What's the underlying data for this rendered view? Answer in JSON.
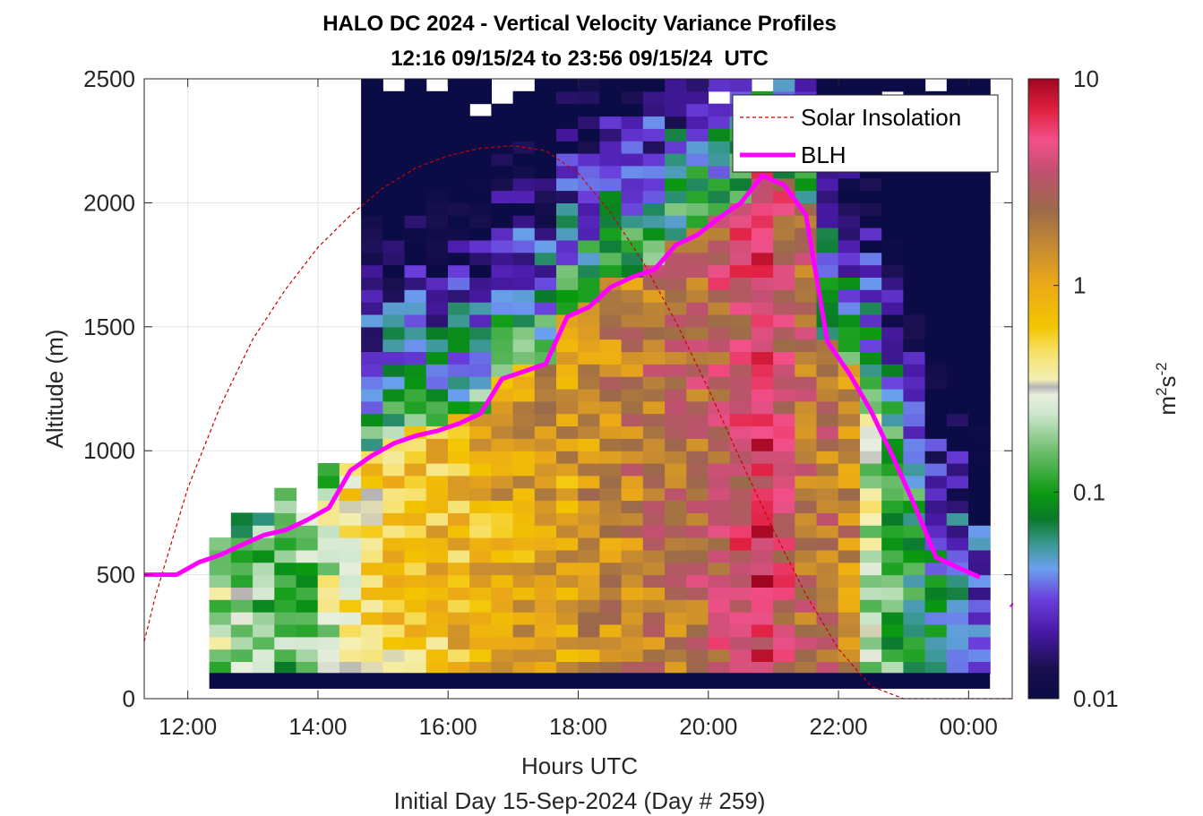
{
  "chart_data": {
    "type": "heatmap",
    "title": "HALO DC 2024 - Vertical Velocity Variance Profiles",
    "subtitle": "12:16 09/15/24 to 23:56 09/15/24  UTC",
    "xlabel": "Hours UTC",
    "footer": "Initial Day 15-Sep-2024 (Day # 259)",
    "ylabel": "Altitude (m)",
    "xlim": [
      11.33,
      24.67
    ],
    "ylim": [
      0,
      2500
    ],
    "xticks": [
      12,
      14,
      16,
      18,
      20,
      22,
      24
    ],
    "xtick_labels": [
      "12:00",
      "14:00",
      "16:00",
      "18:00",
      "20:00",
      "22:00",
      "00:00"
    ],
    "yticks": [
      0,
      500,
      1000,
      1500,
      2000,
      2500
    ],
    "ytick_labels": [
      "0",
      "500",
      "1000",
      "1500",
      "2000",
      "2500"
    ],
    "grid": true,
    "colorbar": {
      "label": "m²s⁻²",
      "scale": "log",
      "range": [
        0.01,
        10
      ],
      "tick_values": [
        0.01,
        0.1,
        1,
        10
      ],
      "tick_labels": [
        "0.01",
        "0.1",
        "1",
        "10"
      ]
    },
    "legend": {
      "position": "top-right",
      "entries": [
        {
          "label": "Solar Insolation",
          "color": "#cc0000",
          "style": "dashed"
        },
        {
          "label": "BLH",
          "color": "#ff00ff",
          "style": "solid"
        }
      ]
    },
    "blh_series": {
      "name": "BLH",
      "x": [
        11.33,
        11.83,
        12.17,
        12.5,
        12.83,
        13.17,
        13.5,
        13.83,
        14.17,
        14.5,
        14.83,
        15.17,
        15.5,
        15.83,
        16.17,
        16.5,
        16.83,
        17.17,
        17.5,
        17.83,
        18.17,
        18.5,
        18.83,
        19.17,
        19.5,
        19.83,
        20.17,
        20.5,
        20.83,
        21.17,
        21.5,
        21.83,
        22.17,
        22.5,
        22.83,
        23.17,
        23.5,
        23.83,
        24.17
      ],
      "y": [
        500,
        500,
        550,
        580,
        620,
        660,
        680,
        720,
        770,
        920,
        980,
        1030,
        1060,
        1080,
        1110,
        1150,
        1290,
        1320,
        1350,
        1540,
        1580,
        1660,
        1700,
        1730,
        1830,
        1870,
        1940,
        2000,
        2110,
        2070,
        1950,
        1440,
        1310,
        1160,
        980,
        780,
        570,
        530,
        490
      ],
      "segment_2": {
        "x": [
          24.65,
          24.67
        ],
        "y": [
          380,
          375
        ]
      }
    },
    "solar_series": {
      "name": "Solar Insolation",
      "x": [
        11.33,
        11.5,
        12,
        12.5,
        13,
        13.5,
        14,
        14.5,
        15,
        15.5,
        16,
        16.5,
        17,
        17.5,
        18,
        18.5,
        19,
        19.5,
        20,
        20.5,
        21,
        21.5,
        22,
        22.5,
        23,
        23.2,
        23.5,
        24,
        24.5,
        24.67
      ],
      "y": [
        230,
        410,
        850,
        1180,
        1450,
        1650,
        1820,
        1950,
        2060,
        2140,
        2190,
        2220,
        2230,
        2210,
        2120,
        1960,
        1760,
        1520,
        1250,
        960,
        680,
        420,
        200,
        50,
        0,
        0,
        0,
        0,
        0,
        0
      ]
    },
    "heatmap": {
      "x_start": 12.33,
      "x_step": 0.3333,
      "y_start": 100,
      "y_step": 50,
      "mask_above": [
        650,
        750,
        750,
        850,
        750,
        950,
        950,
        2500,
        2500,
        2500,
        2500,
        2500,
        2500,
        2500,
        2500,
        2500,
        2500,
        2500,
        2500,
        2500,
        2500,
        2500,
        2500,
        2500,
        2500,
        2500,
        2500,
        2500,
        2500,
        2500,
        2500,
        2500,
        2500,
        2500,
        2500,
        2500
      ],
      "peak_log10": [
        -0.7,
        -0.75,
        -0.8,
        -0.85,
        -0.8,
        -0.6,
        -0.35,
        -0.3,
        -0.2,
        -0.2,
        -0.15,
        -0.1,
        -0.05,
        0.0,
        0.05,
        0.1,
        0.05,
        0.15,
        0.2,
        0.25,
        0.3,
        0.3,
        0.4,
        0.5,
        0.6,
        0.75,
        0.55,
        0.35,
        0.3,
        0.2,
        -0.6,
        -0.9,
        -1.1,
        -1.2,
        -1.3,
        -1.5
      ]
    }
  }
}
